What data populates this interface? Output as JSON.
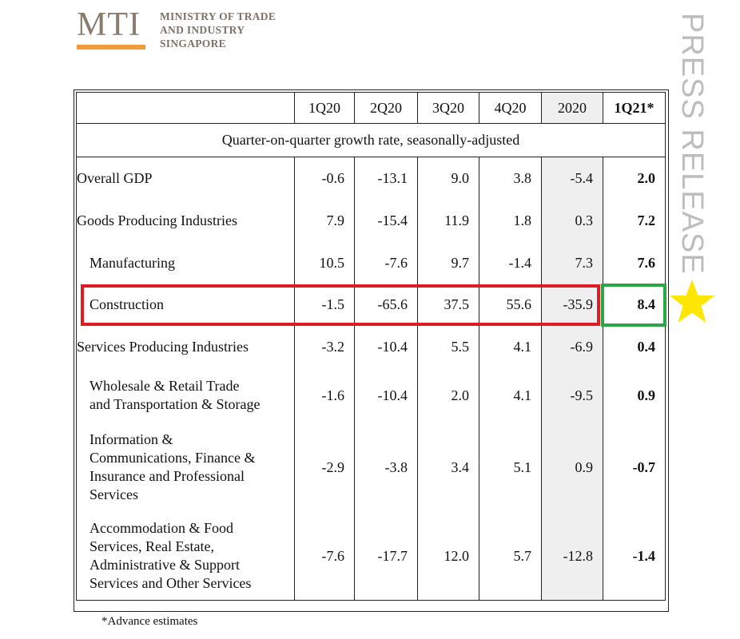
{
  "logo": {
    "mark": "MTI",
    "line1": "MINISTRY OF TRADE",
    "line2": "AND INDUSTRY",
    "line3": "SINGAPORE"
  },
  "side_label": "PRESS RELEASE",
  "table": {
    "headers": [
      "",
      "1Q20",
      "2Q20",
      "3Q20",
      "4Q20",
      "2020",
      "1Q21*"
    ],
    "subheader": "Quarter-on-quarter growth rate, seasonally-adjusted",
    "rows": [
      {
        "label": [
          "Overall GDP"
        ],
        "values": [
          "-0.6",
          "-13.1",
          "9.0",
          "3.8",
          "-5.4",
          "2.0"
        ]
      },
      {
        "label": [
          "Goods Producing Industries"
        ],
        "values": [
          "7.9",
          "-15.4",
          "11.9",
          "1.8",
          "0.3",
          "7.2"
        ]
      },
      {
        "label": [
          "Manufacturing"
        ],
        "values": [
          "10.5",
          "-7.6",
          "9.7",
          "-1.4",
          "7.3",
          "7.6"
        ]
      },
      {
        "label": [
          "Construction"
        ],
        "values": [
          "-1.5",
          "-65.6",
          "37.5",
          "55.6",
          "-35.9",
          "8.4"
        ]
      },
      {
        "label": [
          "Services Producing Industries"
        ],
        "values": [
          "-3.2",
          "-10.4",
          "5.5",
          "4.1",
          "-6.9",
          "0.4"
        ]
      },
      {
        "label": [
          "Wholesale & Retail Trade",
          "and Transportation & Storage"
        ],
        "values": [
          "-1.6",
          "-10.4",
          "2.0",
          "4.1",
          "-9.5",
          "0.9"
        ]
      },
      {
        "label": [
          "Information &",
          "Communications, Finance &",
          "Insurance and Professional",
          "Services"
        ],
        "values": [
          "-2.9",
          "-3.8",
          "3.4",
          "5.1",
          "0.9",
          "-0.7"
        ]
      },
      {
        "label": [
          "Accommodation & Food",
          "Services, Real Estate,",
          "Administrative & Support",
          "Services and Other Services"
        ],
        "values": [
          "-7.6",
          "-17.7",
          "12.0",
          "5.7",
          "-12.8",
          "-1.4"
        ]
      }
    ]
  },
  "footnote": "*Advance estimates",
  "colors": {
    "highlight_red": "#e01b24",
    "highlight_green": "#27a844",
    "star": "#ffe600",
    "shade": "#efefef"
  },
  "annotations": {
    "star_icon": "star-icon"
  }
}
